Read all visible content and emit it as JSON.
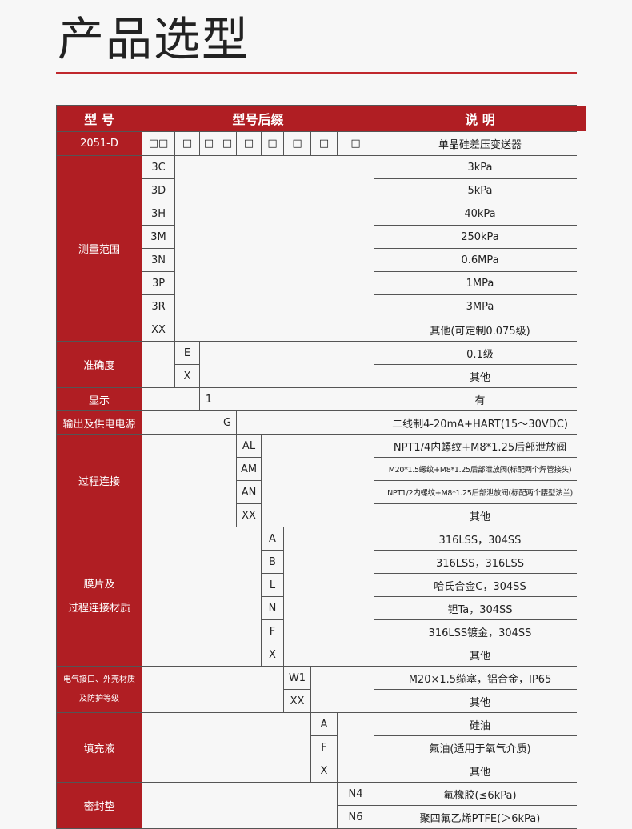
{
  "title": "产品选型",
  "table": {
    "header": {
      "model": "型 号",
      "suffix": "型号后缀",
      "desc": "说 明"
    },
    "model_row": {
      "model": "2051-D",
      "placeholders": [
        "□□",
        "□",
        "□",
        "□",
        "□",
        "□",
        "□",
        "□",
        "□"
      ],
      "desc": "单晶硅差压变送器"
    },
    "groups": [
      {
        "label": [
          "测量范围"
        ],
        "options": [
          {
            "code": "3C",
            "desc": "3kPa"
          },
          {
            "code": "3D",
            "desc": "5kPa"
          },
          {
            "code": "3H",
            "desc": "40kPa"
          },
          {
            "code": "3M",
            "desc": "250kPa"
          },
          {
            "code": "3N",
            "desc": "0.6MPa"
          },
          {
            "code": "3P",
            "desc": "1MPa"
          },
          {
            "code": "3R",
            "desc": "3MPa"
          },
          {
            "code": "XX",
            "desc": "其他(可定制0.075级)"
          }
        ]
      },
      {
        "label": [
          "准确度"
        ],
        "options": [
          {
            "code": "E",
            "desc": "0.1级"
          },
          {
            "code": "X",
            "desc": "其他"
          }
        ]
      },
      {
        "label": [
          "显示"
        ],
        "options": [
          {
            "code": "1",
            "desc": "有"
          }
        ]
      },
      {
        "label": [
          "输出及供电电源"
        ],
        "options": [
          {
            "code": "G",
            "desc": "二线制4-20mA+HART(15～30VDC)"
          }
        ]
      },
      {
        "label": [
          "过程连接"
        ],
        "options": [
          {
            "code": "AL",
            "desc": "NPT1/4内螺纹+M8*1.25后部泄放阀"
          },
          {
            "code": "AM",
            "desc": "M20*1.5螺纹+M8*1.25后部泄放阀(标配两个焊管接头)"
          },
          {
            "code": "AN",
            "desc": "NPT1/2内螺纹+M8*1.25后部泄放阀(标配两个腰型法兰)"
          },
          {
            "code": "XX",
            "desc": "其他"
          }
        ]
      },
      {
        "label": [
          "膜片及",
          "过程连接材质"
        ],
        "options": [
          {
            "code": "A",
            "desc": "316LSS，304SS"
          },
          {
            "code": "B",
            "desc": "316LSS，316LSS"
          },
          {
            "code": "L",
            "desc": "哈氏合金C，304SS"
          },
          {
            "code": "N",
            "desc": "钽Ta，304SS"
          },
          {
            "code": "F",
            "desc": "316LSS镀金，304SS"
          },
          {
            "code": "X",
            "desc": "其他"
          }
        ]
      },
      {
        "label": [
          "电气接口、外壳材质",
          "及防护等级"
        ],
        "options": [
          {
            "code": "W1",
            "desc": "M20×1.5缆塞，铝合金，IP65"
          },
          {
            "code": "XX",
            "desc": "其他"
          }
        ]
      },
      {
        "label": [
          "填充液"
        ],
        "options": [
          {
            "code": "A",
            "desc": "硅油"
          },
          {
            "code": "F",
            "desc": "氟油(适用于氧气介质)"
          },
          {
            "code": "X",
            "desc": "其他"
          }
        ]
      },
      {
        "label": [
          "密封垫"
        ],
        "options": [
          {
            "code": "N4",
            "desc": "氟橡胶(≤6kPa)"
          },
          {
            "code": "N6",
            "desc": "聚四氟乙烯PTFE(＞6kPa)"
          }
        ]
      }
    ]
  },
  "colors": {
    "header_bg": "#b01e23",
    "rule": "#c0282d"
  }
}
